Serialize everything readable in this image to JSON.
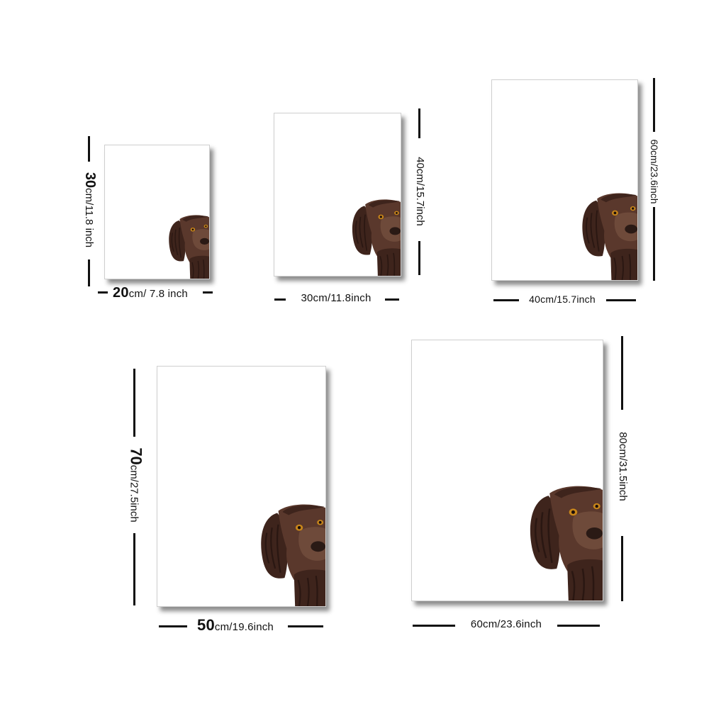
{
  "products": [
    {
      "id": "20x30",
      "width_label": "20cm/ 7.8 inch",
      "height_label": "30cm/11.8 inch"
    },
    {
      "id": "30x40",
      "width_label": "30cm/11.8inch",
      "height_label": "40cm/15.7inch"
    },
    {
      "id": "40x60",
      "width_label": "40cm/15.7inch",
      "height_label": "60cm/23.6inch"
    },
    {
      "id": "50x70",
      "width_label": "50cm/19.6inch",
      "height_label": "70cm/27.5inch"
    },
    {
      "id": "60x80",
      "width_label": "60cm/23.6inch",
      "height_label": "80cm/31.5inch"
    }
  ],
  "label_parts": {
    "p0_w_num": "20",
    "p0_w_rest": "cm/ 7.8 inch",
    "p0_h_num": "30",
    "p0_h_rest": "cm/11.8 inch",
    "p1_w": "30cm/11.8inch",
    "p1_h": "40cm/15.7inch",
    "p2_w": "40cm/15.7inch",
    "p2_h": "60cm/23.6inch",
    "p3_w_num": "50",
    "p3_w_rest": "cm/19.6inch",
    "p3_h_num": "70",
    "p3_h_rest": "cm/27.5inch",
    "p4_w": "60cm/23.6inch",
    "p4_h": "80cm/31.5inch"
  },
  "artwork": {
    "subject": "brown spaniel dog peeking from right edge",
    "fur_color": "#4a2c22",
    "eye_color": "#c8861a"
  },
  "colors": {
    "background": "#ffffff",
    "line": "#111111",
    "frame_shadow": "#555555"
  }
}
